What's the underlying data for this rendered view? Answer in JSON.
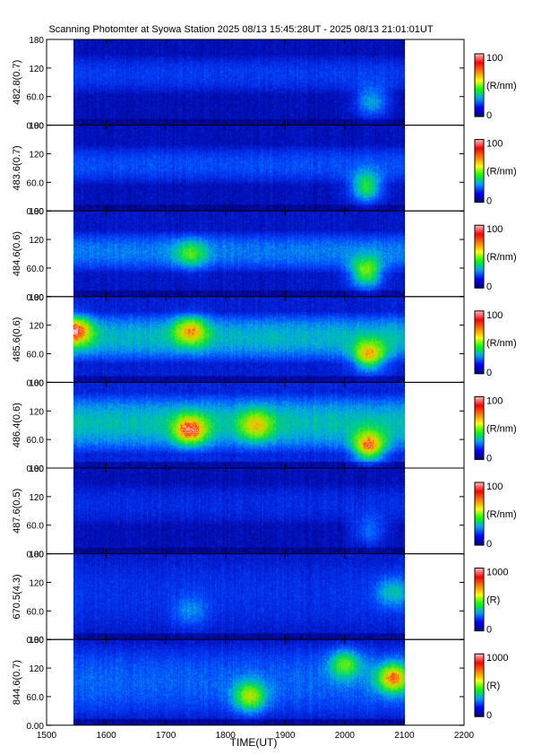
{
  "chart_data": {
    "type": "heatmap",
    "title": "Scanning Photomter at Syowa Station 2025 08/13 15:45:28UT - 2025 08/13 21:01:01UT",
    "xlabel": "TIME(UT)",
    "xlim": [
      1500,
      2200
    ],
    "x_ticks": [
      "1500",
      "1600",
      "1700",
      "1800",
      "1900",
      "2000",
      "2100",
      "2200"
    ],
    "data_range_x": [
      1545,
      2101
    ],
    "ylim": [
      0,
      180
    ],
    "y_ticks": [
      "0.00",
      "60.0",
      "120",
      "180"
    ],
    "panels": [
      {
        "ylabel": "482.8(0.7)",
        "unit": "(R/nm)",
        "cbar_max": "100",
        "cbar_min": "0",
        "cbar_range": [
          0,
          100
        ],
        "intensity_profile": {
          "baseline": 0.12,
          "high_band": [
            65,
            150
          ],
          "high_band_level": 0.26,
          "features": [
            {
              "x": 2045,
              "y": 50,
              "level": 0.45
            }
          ]
        }
      },
      {
        "ylabel": "483.6(0.7)",
        "unit": "(R/nm)",
        "cbar_max": "100",
        "cbar_min": "0",
        "cbar_range": [
          0,
          100
        ],
        "intensity_profile": {
          "baseline": 0.13,
          "high_band": [
            55,
            140
          ],
          "high_band_level": 0.3,
          "features": [
            {
              "x": 2035,
              "y": 50,
              "level": 0.6
            }
          ]
        }
      },
      {
        "ylabel": "484.6(0.6)",
        "unit": "(R/nm)",
        "cbar_max": "100",
        "cbar_min": "0",
        "cbar_range": [
          0,
          100
        ],
        "intensity_profile": {
          "baseline": 0.15,
          "high_band": [
            50,
            140
          ],
          "high_band_level": 0.38,
          "features": [
            {
              "x": 1740,
              "y": 90,
              "level": 0.45
            },
            {
              "x": 2035,
              "y": 50,
              "level": 0.68
            }
          ]
        }
      },
      {
        "ylabel": "485.6(0.6)",
        "unit": "(R/nm)",
        "cbar_max": "100",
        "cbar_min": "0",
        "cbar_range": [
          0,
          100
        ],
        "intensity_profile": {
          "baseline": 0.18,
          "high_band": [
            40,
            150
          ],
          "high_band_level": 0.48,
          "features": [
            {
              "x": 1548,
              "y": 110,
              "level": 0.72
            },
            {
              "x": 1740,
              "y": 110,
              "level": 0.62
            },
            {
              "x": 2040,
              "y": 55,
              "level": 0.72
            }
          ]
        }
      },
      {
        "ylabel": "486.4(0.6)",
        "unit": "(R/nm)",
        "cbar_max": "100",
        "cbar_min": "0",
        "cbar_range": [
          0,
          100
        ],
        "intensity_profile": {
          "baseline": 0.2,
          "high_band": [
            30,
            160
          ],
          "high_band_level": 0.5,
          "features": [
            {
              "x": 1740,
              "y": 80,
              "level": 0.72
            },
            {
              "x": 1850,
              "y": 90,
              "level": 0.55
            },
            {
              "x": 2040,
              "y": 45,
              "level": 0.8
            }
          ]
        }
      },
      {
        "ylabel": "487.6(0.5)",
        "unit": "(R/nm)",
        "cbar_max": "100",
        "cbar_min": "0",
        "cbar_range": [
          0,
          100
        ],
        "intensity_profile": {
          "baseline": 0.12,
          "high_band": [
            60,
            150
          ],
          "high_band_level": 0.22,
          "features": [
            {
              "x": 2040,
              "y": 50,
              "level": 0.35
            }
          ]
        }
      },
      {
        "ylabel": "670.5(4.3)",
        "unit": "(R)",
        "cbar_max": "1000",
        "cbar_min": "0",
        "cbar_range": [
          0,
          1000
        ],
        "intensity_profile": {
          "baseline": 0.17,
          "high_band": [
            20,
            170
          ],
          "high_band_level": 0.24,
          "features": [
            {
              "x": 1740,
              "y": 60,
              "level": 0.35
            },
            {
              "x": 2080,
              "y": 100,
              "level": 0.45
            }
          ]
        }
      },
      {
        "ylabel": "844.6(0.7)",
        "unit": "(R)",
        "cbar_max": "1000",
        "cbar_min": "0",
        "cbar_range": [
          0,
          1000
        ],
        "intensity_profile": {
          "baseline": 0.16,
          "high_band": [
            10,
            175
          ],
          "high_band_level": 0.34,
          "features": [
            {
              "x": 1840,
              "y": 60,
              "level": 0.62
            },
            {
              "x": 2000,
              "y": 130,
              "level": 0.55
            },
            {
              "x": 2080,
              "y": 100,
              "level": 0.75
            }
          ]
        }
      }
    ],
    "colorbar_colors": [
      "#000080",
      "#0000ff",
      "#00a0ff",
      "#00ff00",
      "#ffff00",
      "#ff8000",
      "#ff0000",
      "#ffc0c0"
    ]
  }
}
